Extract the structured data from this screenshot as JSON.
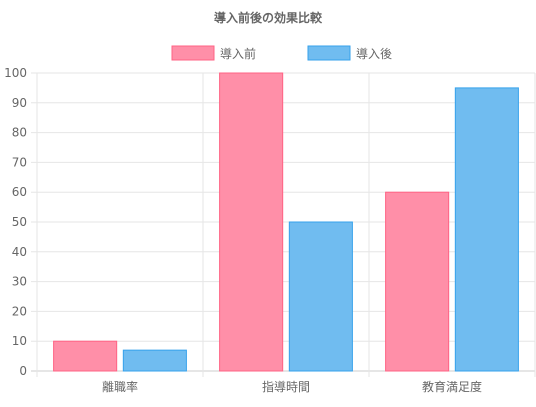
{
  "chart_data": {
    "type": "bar",
    "title": "導入前後の効果比較",
    "categories": [
      "離職率",
      "指導時間",
      "教育満足度"
    ],
    "series": [
      {
        "name": "導入前",
        "values": [
          10,
          100,
          60
        ],
        "fill": "#ff8fa8",
        "stroke": "#ff6384"
      },
      {
        "name": "導入後",
        "values": [
          7,
          50,
          95
        ],
        "fill": "#70bcf0",
        "stroke": "#36a2eb"
      }
    ],
    "ylim": [
      0,
      100
    ],
    "yticks": [
      0,
      10,
      20,
      30,
      40,
      50,
      60,
      70,
      80,
      90,
      100
    ],
    "xlabel": "",
    "ylabel": "",
    "grid": true,
    "legend": "top"
  }
}
